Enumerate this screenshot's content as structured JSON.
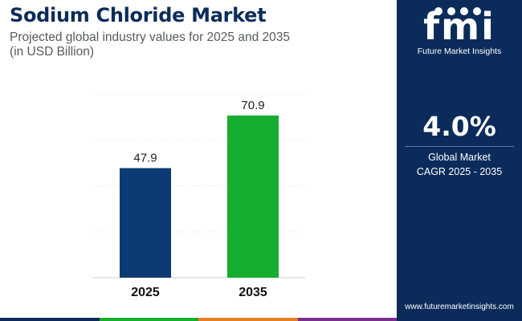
{
  "header": {
    "title": "Sodium Chloride Market",
    "subtitle_line1": "Projected global industry values for 2025 and 2035",
    "subtitle_line2": "(in USD Billion)"
  },
  "chart_data": {
    "type": "bar",
    "categories": [
      "2025",
      "2035"
    ],
    "values": [
      47.9,
      70.9
    ],
    "value_labels": [
      "47.9",
      "70.9"
    ],
    "colors": [
      "#0b3a74",
      "#16ae2e"
    ],
    "title": "Sodium Chloride Market",
    "subtitle": "Projected global industry values for 2025 and 2035 (in USD Billion)",
    "xlabel": "",
    "ylabel": "",
    "ylim": [
      0,
      80
    ],
    "grid": true,
    "legend": "none"
  },
  "sidebar": {
    "logo_text": "fmi",
    "logo_tagline": "Future Market Insights",
    "cagr_value": "4.0%",
    "cagr_label_line1": "Global Market",
    "cagr_label_line2": "CAGR 2025 - 2035",
    "website": "www.futuremarketinsights.com"
  },
  "footer_stripe_colors": [
    "#0b2c5a",
    "#16ae2e",
    "#e67e22",
    "#7a2f8f"
  ]
}
